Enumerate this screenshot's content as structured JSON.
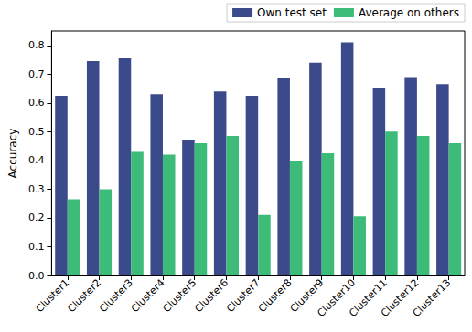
{
  "chart_data": {
    "type": "bar",
    "categories": [
      "Cluster1",
      "Cluster2",
      "Cluster3",
      "Cluster4",
      "Cluster5",
      "Cluster6",
      "Cluster7",
      "Cluster8",
      "Cluster9",
      "Cluster10",
      "Cluster11",
      "Cluster12",
      "Cluster13"
    ],
    "series": [
      {
        "name": "Own test set",
        "color": "#3b4a8a",
        "values": [
          0.625,
          0.745,
          0.755,
          0.63,
          0.47,
          0.64,
          0.625,
          0.685,
          0.74,
          0.81,
          0.65,
          0.69,
          0.665
        ]
      },
      {
        "name": "Average on others",
        "color": "#3dbb78",
        "values": [
          0.265,
          0.3,
          0.43,
          0.42,
          0.46,
          0.485,
          0.21,
          0.4,
          0.425,
          0.205,
          0.5,
          0.485,
          0.46
        ]
      }
    ],
    "y_label": "Accuracy",
    "ylim": [
      0,
      0.85
    ],
    "yticks": [
      {
        "value": 0,
        "label": "0.0"
      },
      {
        "value": 0.1,
        "label": "0.1"
      },
      {
        "value": 0.2,
        "label": "0.2"
      },
      {
        "value": 0.3,
        "label": "0.3"
      },
      {
        "value": 0.4,
        "label": "0.4"
      },
      {
        "value": 0.5,
        "label": "0.5"
      },
      {
        "value": 0.6,
        "label": "0.6"
      },
      {
        "value": 0.7,
        "label": "0.7"
      },
      {
        "value": 0.8,
        "label": "0.8"
      }
    ],
    "legend": "upper right",
    "grid": false
  }
}
